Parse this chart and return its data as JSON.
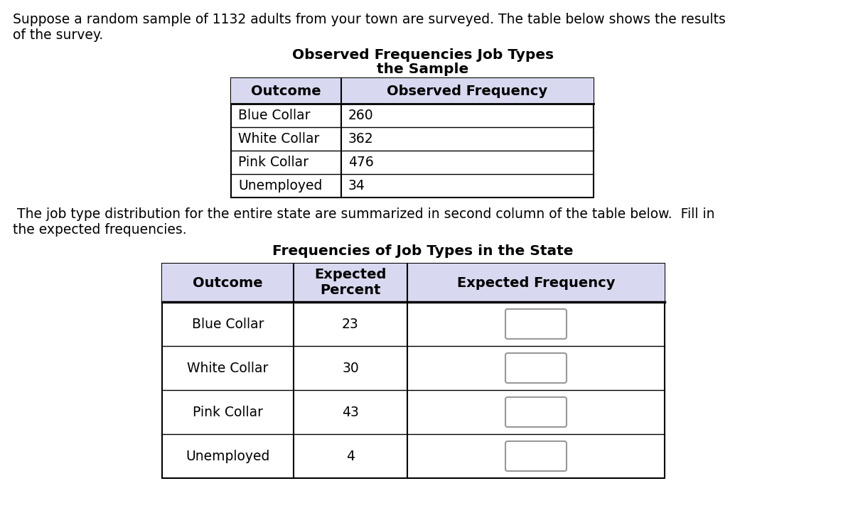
{
  "intro_text_line1": "Suppose a random sample of 1132 adults from your town are surveyed. The table below shows the results",
  "intro_text_line2": "of the survey.",
  "table1_title_line1": "Observed Frequencies Job Types",
  "table1_title_line2": "the Sample",
  "table1_headers": [
    "Outcome",
    "Observed Frequency"
  ],
  "table1_rows": [
    [
      "Blue Collar",
      "260"
    ],
    [
      "White Collar",
      "362"
    ],
    [
      "Pink Collar",
      "476"
    ],
    [
      "Unemployed",
      "34"
    ]
  ],
  "middle_text_line1": " The job type distribution for the entire state are summarized in second column of the table below.  Fill in",
  "middle_text_line2": "the expected frequencies.",
  "table2_title": "Frequencies of Job Types in the State",
  "table2_headers": [
    "Outcome",
    "Expected\nPercent",
    "Expected Frequency"
  ],
  "table2_rows": [
    [
      "Blue Collar",
      "23"
    ],
    [
      "White Collar",
      "30"
    ],
    [
      "Pink Collar",
      "43"
    ],
    [
      "Unemployed",
      "4"
    ]
  ],
  "bg_color": "#ffffff",
  "header_bg": "#d8d8f0",
  "table_border": "#000000",
  "input_box_color": "#ffffff",
  "input_box_border": "#999999",
  "font_size_body": 13.5,
  "font_size_header": 14.0,
  "font_size_title": 14.5
}
